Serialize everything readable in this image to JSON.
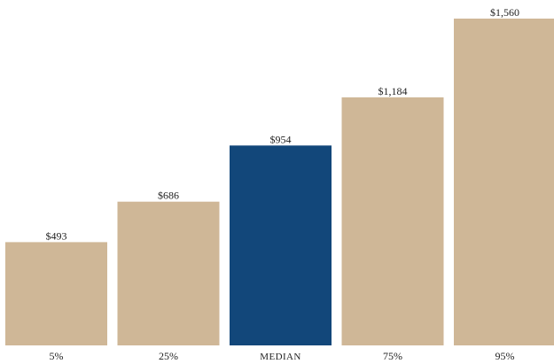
{
  "chart_data": {
    "type": "bar",
    "categories": [
      "5%",
      "25%",
      "MEDIAN",
      "75%",
      "95%"
    ],
    "values": [
      493,
      686,
      954,
      1184,
      1560
    ],
    "value_labels": [
      "$493",
      "$686",
      "$954",
      "$1,184",
      "$1,560"
    ],
    "highlight_index": 2,
    "colors": {
      "bar": "#cfb797",
      "highlight": "#12477a",
      "text": "#222222"
    },
    "ylim": [
      0,
      1560
    ],
    "grid": false,
    "title": "",
    "xlabel": "",
    "ylabel": ""
  }
}
